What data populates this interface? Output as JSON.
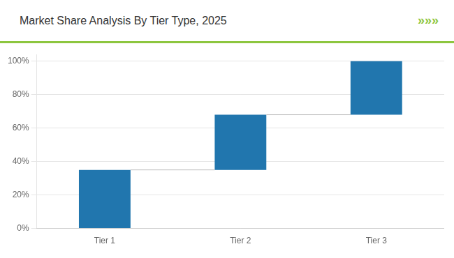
{
  "chart_data": {
    "type": "waterfall",
    "title": "Market Share Analysis By Tier Type, 2025",
    "categories": [
      "Tier 1",
      "Tier 2",
      "Tier 3"
    ],
    "values": [
      35,
      33,
      32
    ],
    "color": "#2176ae",
    "ylim": [
      0,
      104
    ],
    "yticks": [
      {
        "value": 0,
        "label": "0%"
      },
      {
        "value": 20,
        "label": "20%"
      },
      {
        "value": 40,
        "label": "40%"
      },
      {
        "value": 60,
        "label": "60%"
      },
      {
        "value": 80,
        "label": "80%"
      },
      {
        "value": 100,
        "label": "100%"
      }
    ],
    "grid": true,
    "annotations": [
      "»»»"
    ]
  }
}
